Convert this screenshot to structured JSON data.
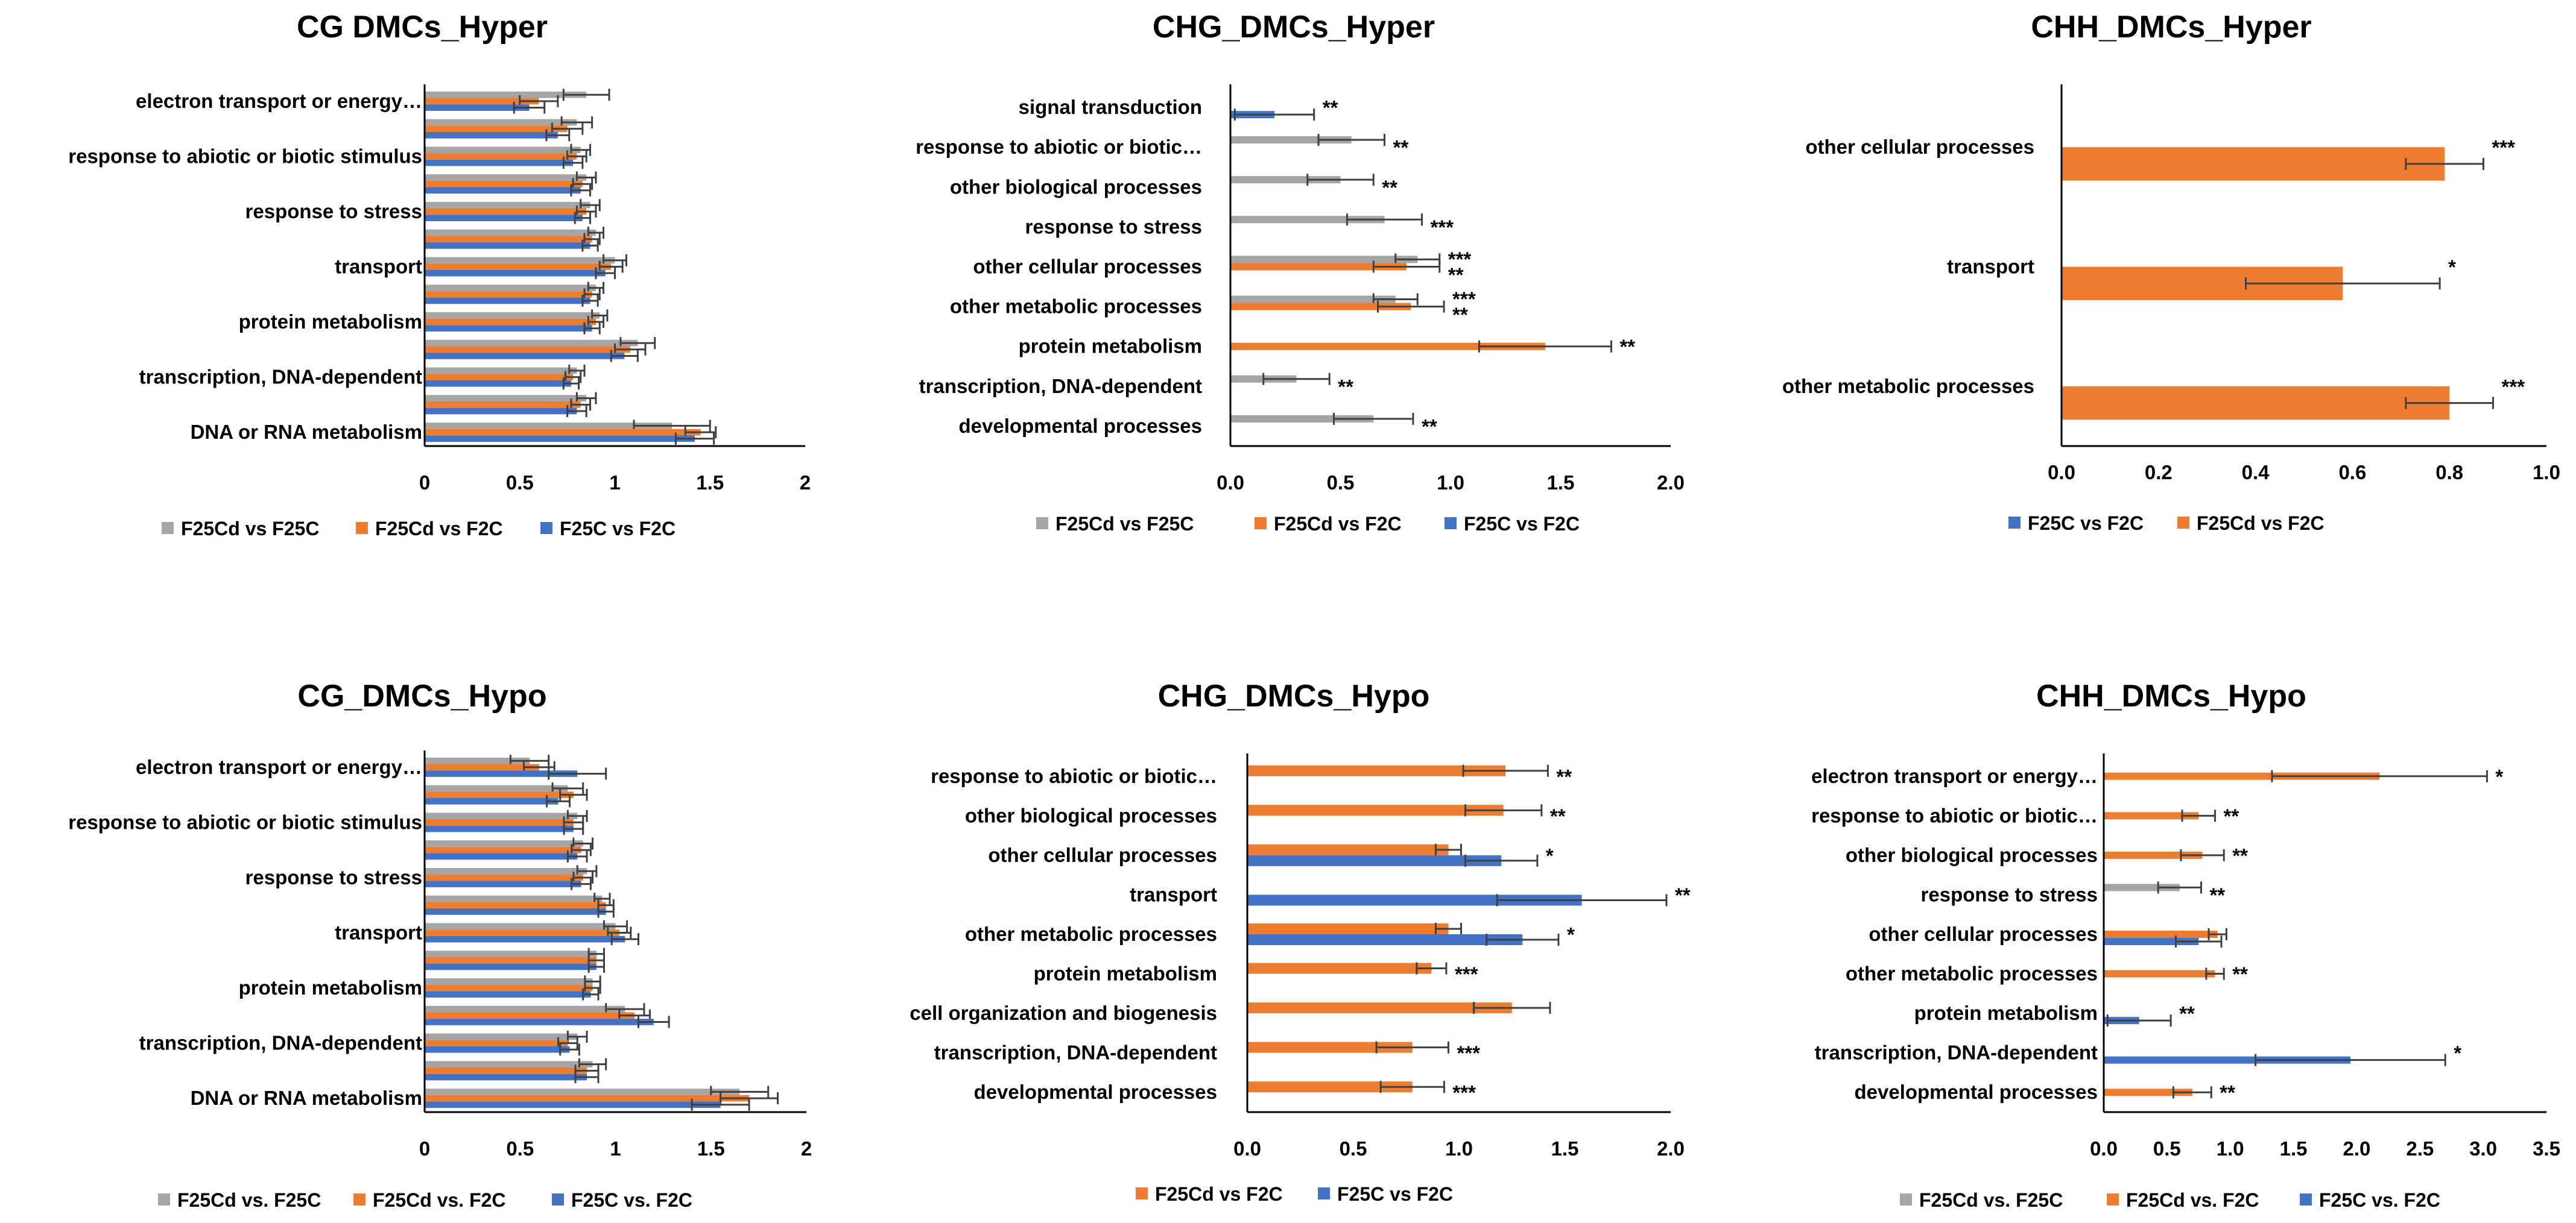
{
  "colors": {
    "gray": "#a5a5a5",
    "orange": "#ed7d31",
    "blue": "#4472c4",
    "axis": "#000000",
    "errorbar": "#404040"
  },
  "chart_data": [
    {
      "type": "bar",
      "orientation": "horizontal",
      "title": "CG DMCs_Hyper",
      "xlim": [
        0,
        2
      ],
      "xticks": [
        "0",
        "0.5",
        "1",
        "1.5",
        "2"
      ],
      "categories": [
        "electron transport or energy…",
        "",
        "response to abiotic or biotic stimulus",
        "",
        "response to stress",
        "",
        "transport",
        "",
        "protein metabolism",
        "",
        "transcription, DNA-dependent",
        "",
        "DNA or RNA metabolism"
      ],
      "series": [
        {
          "name": "F25Cd vs F25C",
          "color": "gray",
          "values": [
            0.85,
            0.8,
            0.82,
            0.85,
            0.87,
            0.9,
            1.0,
            0.9,
            0.92,
            1.12,
            0.8,
            0.85,
            1.3
          ],
          "errors": [
            0.12,
            0.08,
            0.05,
            0.05,
            0.05,
            0.04,
            0.06,
            0.04,
            0.04,
            0.09,
            0.04,
            0.05,
            0.2
          ]
        },
        {
          "name": "F25Cd vs F2C",
          "color": "orange",
          "values": [
            0.6,
            0.75,
            0.8,
            0.83,
            0.85,
            0.88,
            0.98,
            0.88,
            0.9,
            1.08,
            0.78,
            0.82,
            1.45
          ],
          "errors": [
            0.1,
            0.08,
            0.05,
            0.05,
            0.05,
            0.04,
            0.06,
            0.04,
            0.04,
            0.08,
            0.04,
            0.05,
            0.08
          ]
        },
        {
          "name": "F25C vs F2C",
          "color": "blue",
          "values": [
            0.55,
            0.7,
            0.78,
            0.82,
            0.83,
            0.87,
            0.95,
            0.87,
            0.88,
            1.05,
            0.77,
            0.8,
            1.42
          ],
          "errors": [
            0.08,
            0.06,
            0.05,
            0.05,
            0.04,
            0.04,
            0.05,
            0.04,
            0.04,
            0.07,
            0.04,
            0.05,
            0.1
          ]
        }
      ],
      "significance": [],
      "legend": [
        "F25Cd vs F25C",
        "F25Cd vs F2C",
        "F25C vs F2C"
      ]
    },
    {
      "type": "bar",
      "orientation": "horizontal",
      "title": "CHG_DMCs_Hyper",
      "xlim": [
        0,
        2
      ],
      "xticks": [
        "0.0",
        "0.5",
        "1.0",
        "1.5",
        "2.0"
      ],
      "categories": [
        "signal transduction",
        "response to abiotic or biotic…",
        "other biological processes",
        "response to stress",
        "other cellular processes",
        "other metabolic processes",
        "protein metabolism",
        "transcription, DNA-dependent",
        "developmental processes"
      ],
      "series": [
        {
          "name": "F25Cd vs F25C",
          "color": "gray",
          "values": [
            null,
            0.55,
            0.5,
            0.7,
            0.85,
            0.75,
            null,
            0.3,
            0.65
          ],
          "errors": [
            0,
            0.15,
            0.15,
            0.17,
            0.1,
            0.1,
            0,
            0.15,
            0.18
          ]
        },
        {
          "name": "F25Cd vs F2C",
          "color": "orange",
          "values": [
            null,
            null,
            null,
            null,
            0.8,
            0.82,
            1.43,
            null,
            null
          ],
          "errors": [
            0,
            0,
            0,
            0,
            0.15,
            0.15,
            0.3,
            0,
            0
          ]
        },
        {
          "name": "F25C vs F2C",
          "color": "blue",
          "values": [
            0.2,
            null,
            null,
            null,
            null,
            null,
            null,
            null,
            null
          ],
          "errors": [
            0.18,
            0,
            0,
            0,
            0,
            0,
            0,
            0,
            0
          ]
        }
      ],
      "significance": [
        [
          "**"
        ],
        [
          "**"
        ],
        [
          "**"
        ],
        [
          "***"
        ],
        [
          "***",
          "**"
        ],
        [
          "***",
          "**"
        ],
        [
          "**"
        ],
        [
          "**"
        ],
        [
          "**"
        ]
      ],
      "legend": [
        "F25Cd vs F25C",
        "F25Cd vs F2C",
        "F25C vs F2C"
      ]
    },
    {
      "type": "bar",
      "orientation": "horizontal",
      "title": "CHH_DMCs_Hyper",
      "xlim": [
        0,
        1
      ],
      "xticks": [
        "0.0",
        "0.2",
        "0.4",
        "0.6",
        "0.8",
        "1.0"
      ],
      "categories": [
        "other cellular processes",
        "transport",
        "other metabolic processes"
      ],
      "series": [
        {
          "name": "F25C vs F2C",
          "color": "blue",
          "values": [
            null,
            null,
            null
          ],
          "errors": [
            0,
            0,
            0
          ]
        },
        {
          "name": "F25Cd vs F2C",
          "color": "orange",
          "values": [
            0.79,
            0.58,
            0.8
          ],
          "errors": [
            0.08,
            0.2,
            0.09
          ]
        }
      ],
      "significance": [
        [
          "***"
        ],
        [
          "*"
        ],
        [
          "***"
        ]
      ],
      "legend": [
        "F25C vs F2C",
        "F25Cd vs F2C"
      ]
    },
    {
      "type": "bar",
      "orientation": "horizontal",
      "title": "CG_DMCs_Hypo",
      "xlim": [
        0,
        2
      ],
      "xticks": [
        "0",
        "0.5",
        "1",
        "1.5",
        "2"
      ],
      "categories": [
        "electron transport or energy…",
        "",
        "response to abiotic or biotic stimulus",
        "",
        "response to stress",
        "",
        "transport",
        "",
        "protein metabolism",
        "",
        "transcription, DNA-dependent",
        "",
        "DNA or RNA metabolism"
      ],
      "series": [
        {
          "name": "F25Cd vs. F25C",
          "color": "gray",
          "values": [
            0.55,
            0.75,
            0.8,
            0.83,
            0.85,
            0.93,
            1.0,
            0.9,
            0.88,
            1.05,
            0.8,
            0.88,
            1.65
          ],
          "errors": [
            0.1,
            0.08,
            0.05,
            0.05,
            0.05,
            0.04,
            0.06,
            0.04,
            0.04,
            0.1,
            0.05,
            0.07,
            0.15
          ]
        },
        {
          "name": "F25Cd vs. F2C",
          "color": "orange",
          "values": [
            0.6,
            0.78,
            0.78,
            0.82,
            0.83,
            0.95,
            1.02,
            0.9,
            0.88,
            1.1,
            0.75,
            0.85,
            1.7
          ],
          "errors": [
            0.08,
            0.07,
            0.05,
            0.05,
            0.05,
            0.04,
            0.06,
            0.04,
            0.04,
            0.08,
            0.05,
            0.06,
            0.15
          ]
        },
        {
          "name": "F25C vs. F2C",
          "color": "blue",
          "values": [
            0.8,
            0.7,
            0.78,
            0.8,
            0.82,
            0.95,
            1.05,
            0.9,
            0.87,
            1.2,
            0.76,
            0.85,
            1.55
          ],
          "errors": [
            0.15,
            0.06,
            0.05,
            0.05,
            0.05,
            0.04,
            0.07,
            0.04,
            0.04,
            0.08,
            0.05,
            0.06,
            0.15
          ]
        }
      ],
      "significance": [],
      "legend": [
        "F25Cd vs. F25C",
        "F25Cd vs. F2C",
        "F25C vs. F2C"
      ]
    },
    {
      "type": "bar",
      "orientation": "horizontal",
      "title": "CHG_DMCs_Hypo",
      "xlim": [
        0,
        2
      ],
      "xticks": [
        "0.0",
        "0.5",
        "1.0",
        "1.5",
        "2.0"
      ],
      "categories": [
        "response to abiotic or biotic…",
        "other biological processes",
        "other cellular processes",
        "transport",
        "other metabolic processes",
        "protein metabolism",
        "cell organization and biogenesis",
        "transcription, DNA-dependent",
        "developmental processes"
      ],
      "series": [
        {
          "name": "F25Cd vs F2C",
          "color": "orange",
          "values": [
            1.22,
            1.21,
            0.95,
            null,
            0.95,
            0.87,
            1.25,
            0.78,
            0.78
          ],
          "errors": [
            0.2,
            0.18,
            0.06,
            0,
            0.06,
            0.07,
            0.18,
            0.17,
            0.15
          ]
        },
        {
          "name": "F25C vs F2C",
          "color": "blue",
          "values": [
            null,
            null,
            1.2,
            1.58,
            1.3,
            null,
            null,
            null,
            null
          ],
          "errors": [
            0,
            0,
            0.17,
            0.4,
            0.17,
            0,
            0,
            0,
            0
          ]
        }
      ],
      "significance": [
        [
          "**"
        ],
        [
          "**"
        ],
        [
          "*"
        ],
        [
          "**"
        ],
        [
          "*"
        ],
        [
          "***"
        ],
        [],
        [
          "***"
        ],
        [
          "***"
        ]
      ],
      "legend": [
        "F25Cd vs F2C",
        "F25C vs F2C"
      ]
    },
    {
      "type": "bar",
      "orientation": "horizontal",
      "title": "CHH_DMCs_Hypo",
      "xlim": [
        0,
        3.5
      ],
      "xticks": [
        "0.0",
        "0.5",
        "1.0",
        "1.5",
        "2.0",
        "2.5",
        "3.0",
        "3.5"
      ],
      "categories": [
        "electron transport or energy…",
        "response to abiotic or biotic…",
        "other biological processes",
        "response to stress",
        "other cellular processes",
        "other metabolic processes",
        "protein metabolism",
        "transcription, DNA-dependent",
        "developmental processes"
      ],
      "series": [
        {
          "name": "F25Cd vs. F25C",
          "color": "gray",
          "values": [
            null,
            null,
            null,
            0.6,
            null,
            null,
            null,
            null,
            null
          ],
          "errors": [
            0,
            0,
            0,
            0.17,
            0,
            0,
            0,
            0,
            0
          ]
        },
        {
          "name": "F25Cd vs. F2C",
          "color": "orange",
          "values": [
            2.18,
            0.75,
            0.78,
            null,
            0.9,
            0.88,
            null,
            null,
            0.7
          ],
          "errors": [
            0.85,
            0.13,
            0.17,
            0,
            0.07,
            0.07,
            0,
            0,
            0.15
          ]
        },
        {
          "name": "F25C vs. F2C",
          "color": "blue",
          "values": [
            null,
            null,
            null,
            null,
            0.75,
            null,
            0.28,
            1.95,
            null
          ],
          "errors": [
            0,
            0,
            0,
            0,
            0.18,
            0,
            0.25,
            0.75,
            0
          ]
        }
      ],
      "significance": [
        [
          "*"
        ],
        [
          "**"
        ],
        [
          "**"
        ],
        [
          "**"
        ],
        [],
        [
          "**"
        ],
        [
          "**"
        ],
        [
          "*"
        ],
        [
          "**"
        ]
      ],
      "legend": [
        "F25Cd vs. F25C",
        "F25Cd vs. F2C",
        "F25C vs. F2C"
      ]
    }
  ]
}
